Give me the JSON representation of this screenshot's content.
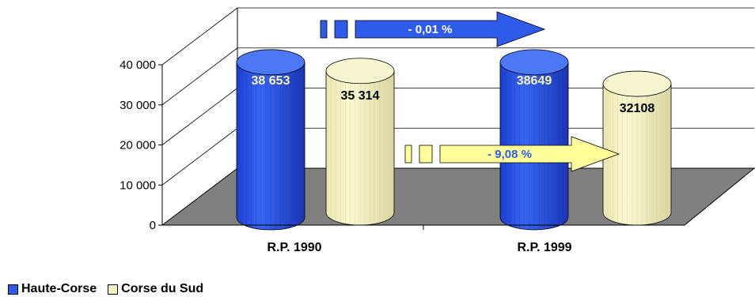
{
  "chart_data": {
    "type": "bar",
    "style": "3d-cylinder",
    "categories": [
      "R.P. 1990",
      "R.P. 1999"
    ],
    "series": [
      {
        "name": "Haute-Corse",
        "values": [
          38653,
          38649
        ],
        "labels": [
          "38 653",
          "38649"
        ],
        "color": "#2f5bea"
      },
      {
        "name": "Corse du Sud",
        "values": [
          35314,
          32108
        ],
        "labels": [
          "35 314",
          "32108"
        ],
        "color": "#f3f1c2"
      }
    ],
    "ylim": [
      0,
      40000
    ],
    "yticks": [
      "0",
      "10 000",
      "20 000",
      "30 000",
      "40 000"
    ],
    "annotations": [
      {
        "text": "- 0,01 %",
        "series": "Haute-Corse",
        "color": "#2f5bea"
      },
      {
        "text": "- 9,08 %",
        "series": "Corse du Sud",
        "color": "#ffff99"
      }
    ],
    "legend_position": "bottom-left",
    "grid": true,
    "floor_color": "#808080"
  }
}
